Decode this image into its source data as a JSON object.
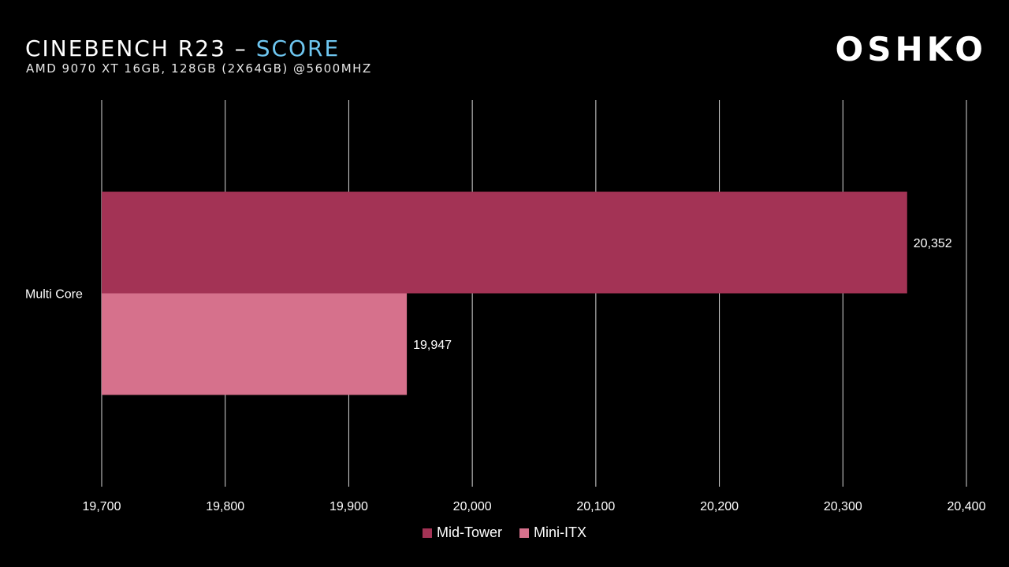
{
  "header": {
    "title_main": "CINEBENCH R23 – ",
    "title_accent": "SCORE",
    "subtitle": "AMD 9070 XT 16GB, 128GB (2X64GB) @5600MHZ",
    "brand": "OSHKO"
  },
  "colors": {
    "background": "#000000",
    "accent": "#6ec6f0",
    "grid": "#d9d9d9"
  },
  "chart_data": {
    "type": "bar",
    "orientation": "horizontal",
    "title": "CINEBENCH R23 – SCORE",
    "subtitle": "AMD 9070 XT 16GB, 128GB (2X64GB) @5600MHZ",
    "categories": [
      "Multi Core"
    ],
    "series": [
      {
        "name": "Mid-Tower",
        "values": [
          20352
        ],
        "labels": [
          "20,352"
        ],
        "color": "#a33355"
      },
      {
        "name": "Mini-ITX",
        "values": [
          19947
        ],
        "labels": [
          "19,947"
        ],
        "color": "#d6718c"
      }
    ],
    "xlim": [
      19700,
      20400
    ],
    "xticks": [
      19700,
      19800,
      19900,
      20000,
      20100,
      20200,
      20300,
      20400
    ],
    "xtick_labels": [
      "19,700",
      "19,800",
      "19,900",
      "20,000",
      "20,100",
      "20,200",
      "20,300",
      "20,400"
    ],
    "xlabel": "",
    "ylabel": "",
    "grid": true,
    "legend_position": "bottom"
  }
}
